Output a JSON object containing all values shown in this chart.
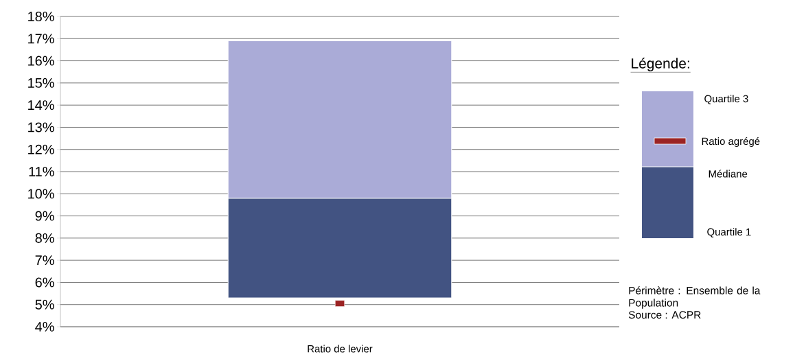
{
  "chart_data": {
    "type": "bar",
    "categories": [
      "Ratio de levier"
    ],
    "series": [
      {
        "color": "#425382",
        "base": [
          5.3
        ],
        "values": [
          4.5
        ]
      },
      {
        "color": "#aaabd7",
        "base": [
          9.8
        ],
        "values": [
          7.1
        ]
      },
      {
        "type": "scatter",
        "name": "Ratio agrégé",
        "color": "#9b2323",
        "x": [
          "Ratio de levier"
        ],
        "values": [
          5.05
        ]
      }
    ],
    "ylim": [
      4,
      18
    ],
    "yticks": [
      {
        "value": 4,
        "label": "4%"
      },
      {
        "value": 5,
        "label": "5%"
      },
      {
        "value": 6,
        "label": "6%"
      },
      {
        "value": 7,
        "label": "7%"
      },
      {
        "value": 8,
        "label": "8%"
      },
      {
        "value": 9,
        "label": "9%"
      },
      {
        "value": 10,
        "label": "10%"
      },
      {
        "value": 11,
        "label": "11%"
      },
      {
        "value": 12,
        "label": "12%"
      },
      {
        "value": 13,
        "label": "13%"
      },
      {
        "value": 14,
        "label": "14%"
      },
      {
        "value": 15,
        "label": "15%"
      },
      {
        "value": 16,
        "label": "16%"
      },
      {
        "value": 17,
        "label": "17%"
      },
      {
        "value": 18,
        "label": "18%"
      }
    ],
    "grid": "y",
    "legend": "right",
    "legend_title": "Légende:",
    "annotations": [
      "Quartile 3",
      "Médiane",
      "Quartile 1",
      "Périmètre : Ensemble de la Population",
      "Source : ACPR"
    ]
  }
}
